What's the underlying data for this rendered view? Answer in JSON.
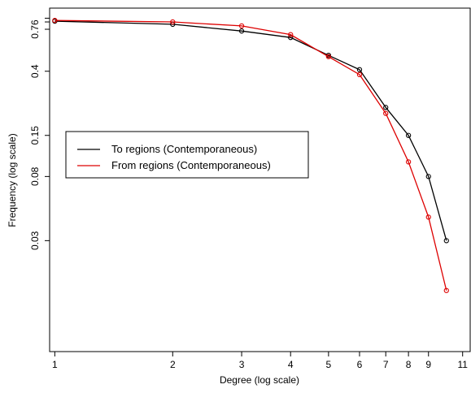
{
  "chart_data": {
    "type": "line",
    "title": "",
    "xlabel": "Degree (log scale)",
    "ylabel": "Frequency (log scale)",
    "x_scale": "log",
    "y_scale": "log",
    "xlim": [
      0.97,
      11.5
    ],
    "ylim": [
      0.0055,
      1.05
    ],
    "x_ticks": [
      1,
      2,
      3,
      4,
      5,
      6,
      7,
      8,
      9,
      11
    ],
    "y_ticks": [
      0.03,
      0.08,
      0.15,
      0.4,
      0.76
    ],
    "y_tick_labels": [
      "0.03",
      "0.08",
      "0.15",
      "0.4",
      "0.76"
    ],
    "y_extra_ticks": [
      0.85,
      0.9
    ],
    "grid": false,
    "legend": {
      "placement": "middle-left",
      "box": true
    },
    "series": [
      {
        "name": "To regions (Contemporaneous)",
        "color": "#000000",
        "marker": "open-circle",
        "x": [
          1,
          2,
          3,
          4,
          5,
          6,
          7,
          8,
          9,
          10
        ],
        "y": [
          0.86,
          0.82,
          0.74,
          0.67,
          0.51,
          0.41,
          0.23,
          0.15,
          0.08,
          0.03
        ]
      },
      {
        "name": "From regions (Contemporaneous)",
        "color": "#dd0000",
        "marker": "open-circle",
        "x": [
          1,
          2,
          3,
          4,
          5,
          6,
          7,
          8,
          9,
          10
        ],
        "y": [
          0.87,
          0.85,
          0.8,
          0.7,
          0.5,
          0.38,
          0.21,
          0.1,
          0.043,
          0.014
        ]
      }
    ]
  }
}
